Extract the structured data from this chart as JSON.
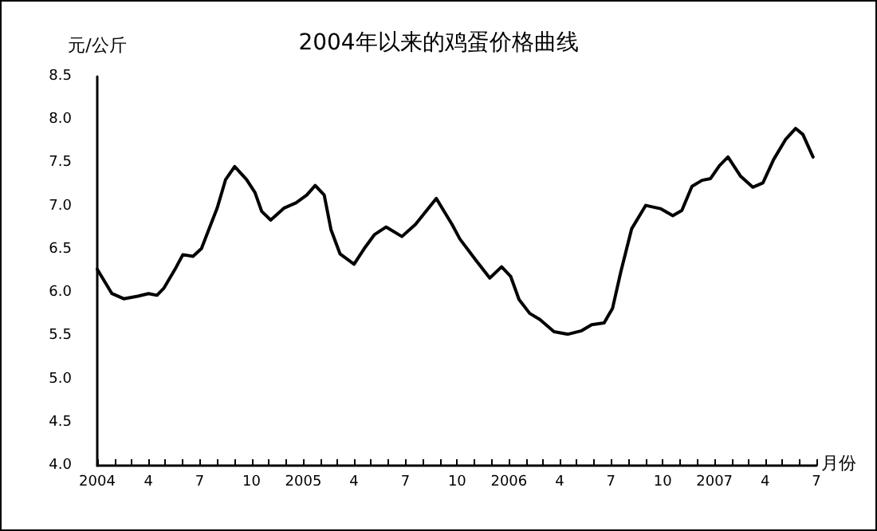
{
  "chart_data": {
    "type": "line",
    "title": "2004年以来的鸡蛋价格曲线",
    "ylabel": "元/公斤",
    "xlabel": "月份",
    "x": [
      "2004-01-01",
      "2004-01-27",
      "2004-02-17",
      "2004-03-13",
      "2004-04-01",
      "2004-04-16",
      "2004-04-28",
      "2004-05-18",
      "2004-06-01",
      "2004-06-19",
      "2004-07-04",
      "2004-08-01",
      "2004-08-16",
      "2004-09-01",
      "2004-09-22",
      "2004-10-07",
      "2004-10-19",
      "2004-11-04",
      "2004-11-28",
      "2004-12-19",
      "2005-01-07",
      "2005-01-22",
      "2005-02-07",
      "2005-02-19",
      "2005-03-07",
      "2005-04-01",
      "2005-04-19",
      "2005-05-07",
      "2005-05-28",
      "2005-06-25",
      "2005-07-19",
      "2005-08-25",
      "2005-09-22",
      "2005-10-06",
      "2005-11-04",
      "2005-11-28",
      "2005-12-19",
      "2006-01-04",
      "2006-01-19",
      "2006-02-07",
      "2006-02-25",
      "2006-03-22",
      "2006-04-16",
      "2006-05-10",
      "2006-05-28",
      "2006-06-19",
      "2006-07-04",
      "2006-07-19",
      "2006-08-07",
      "2006-09-01",
      "2006-09-28",
      "2006-10-19",
      "2006-11-04",
      "2006-11-22",
      "2006-12-10",
      "2006-12-25",
      "2007-01-10",
      "2007-01-25",
      "2007-02-16",
      "2007-03-10",
      "2007-03-28",
      "2007-04-16",
      "2007-05-07",
      "2007-05-25",
      "2007-06-07",
      "2007-06-25"
    ],
    "series": [
      {
        "color": "#000000",
        "values": [
          6.27,
          5.99,
          5.93,
          5.96,
          5.99,
          5.97,
          6.05,
          6.27,
          6.44,
          6.42,
          6.51,
          6.98,
          7.31,
          7.46,
          7.31,
          7.16,
          6.94,
          6.84,
          6.98,
          7.04,
          7.13,
          7.24,
          7.13,
          6.73,
          6.45,
          6.33,
          6.51,
          6.67,
          6.76,
          6.65,
          6.79,
          7.09,
          6.79,
          6.62,
          6.37,
          6.17,
          6.3,
          6.19,
          5.92,
          5.76,
          5.69,
          5.55,
          5.52,
          5.56,
          5.63,
          5.65,
          5.82,
          6.25,
          6.74,
          7.01,
          6.97,
          6.89,
          6.95,
          7.23,
          7.3,
          7.32,
          7.47,
          7.57,
          7.35,
          7.22,
          7.27,
          7.54,
          7.77,
          7.9,
          7.83,
          7.57
        ]
      }
    ],
    "xlim": [
      "2004-01-01",
      "2007-07-01"
    ],
    "xticks": [
      {
        "value": "2004-01",
        "label": "2004"
      },
      {
        "value": "2004-02",
        "label": null
      },
      {
        "value": "2004-03",
        "label": null
      },
      {
        "value": "2004-04",
        "label": "4"
      },
      {
        "value": "2004-05",
        "label": null
      },
      {
        "value": "2004-06",
        "label": null
      },
      {
        "value": "2004-07",
        "label": "7"
      },
      {
        "value": "2004-08",
        "label": null
      },
      {
        "value": "2004-09",
        "label": null
      },
      {
        "value": "2004-10",
        "label": "10"
      },
      {
        "value": "2004-11",
        "label": null
      },
      {
        "value": "2004-12",
        "label": null
      },
      {
        "value": "2005-01",
        "label": "2005"
      },
      {
        "value": "2005-02",
        "label": null
      },
      {
        "value": "2005-03",
        "label": null
      },
      {
        "value": "2005-04",
        "label": "4"
      },
      {
        "value": "2005-05",
        "label": null
      },
      {
        "value": "2005-06",
        "label": null
      },
      {
        "value": "2005-07",
        "label": "7"
      },
      {
        "value": "2005-08",
        "label": null
      },
      {
        "value": "2005-09",
        "label": null
      },
      {
        "value": "2005-10",
        "label": "10"
      },
      {
        "value": "2005-11",
        "label": null
      },
      {
        "value": "2005-12",
        "label": null
      },
      {
        "value": "2006-01",
        "label": "2006"
      },
      {
        "value": "2006-02",
        "label": null
      },
      {
        "value": "2006-03",
        "label": null
      },
      {
        "value": "2006-04",
        "label": "4"
      },
      {
        "value": "2006-05",
        "label": null
      },
      {
        "value": "2006-06",
        "label": null
      },
      {
        "value": "2006-07",
        "label": "7"
      },
      {
        "value": "2006-08",
        "label": null
      },
      {
        "value": "2006-09",
        "label": null
      },
      {
        "value": "2006-10",
        "label": "10"
      },
      {
        "value": "2006-11",
        "label": null
      },
      {
        "value": "2006-12",
        "label": null
      },
      {
        "value": "2007-01",
        "label": "2007"
      },
      {
        "value": "2007-02",
        "label": null
      },
      {
        "value": "2007-03",
        "label": null
      },
      {
        "value": "2007-04",
        "label": "4"
      },
      {
        "value": "2007-05",
        "label": null
      },
      {
        "value": "2007-06",
        "label": null
      },
      {
        "value": "2007-07",
        "label": "7"
      }
    ],
    "ylim": [
      4,
      8.5
    ],
    "yticks": [
      {
        "value": 4,
        "label": "4.0"
      },
      {
        "value": 4.5,
        "label": "4.5"
      },
      {
        "value": 5,
        "label": "5.0"
      },
      {
        "value": 5.5,
        "label": "5.5"
      },
      {
        "value": 6,
        "label": "6.0"
      },
      {
        "value": 6.5,
        "label": "6.5"
      },
      {
        "value": 7,
        "label": "7.0"
      },
      {
        "value": 7.5,
        "label": "7.5"
      },
      {
        "value": 8,
        "label": "8.0"
      },
      {
        "value": 8.5,
        "label": "8.5"
      }
    ],
    "grid": false,
    "marker": "none",
    "line_style": "solid"
  }
}
